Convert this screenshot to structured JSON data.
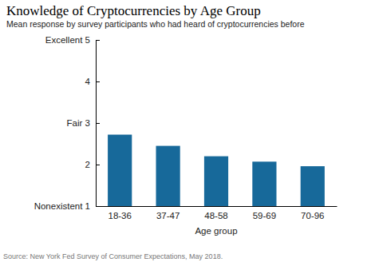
{
  "chart_data": {
    "type": "bar",
    "title": "Knowledge of Cryptocurrencies by Age Group",
    "subtitle": "Mean response by survey participants who had heard of cryptocurrencies before",
    "x_label": "Age group",
    "source": "Source: New York Fed Survey of Consumer Expectations, May 2018.",
    "categories": [
      "18-36",
      "37-47",
      "48-58",
      "59-69",
      "70-96"
    ],
    "values": [
      2.72,
      2.45,
      2.2,
      2.07,
      1.96
    ],
    "color": "#17699a",
    "ylim": [
      1,
      5
    ],
    "yticks": [
      {
        "value": 1,
        "label": "Nonexistent 1"
      },
      2,
      {
        "value": 3,
        "label": "Fair 3"
      },
      4,
      {
        "value": 5,
        "label": "Excellent 5"
      }
    ],
    "grid": false
  }
}
